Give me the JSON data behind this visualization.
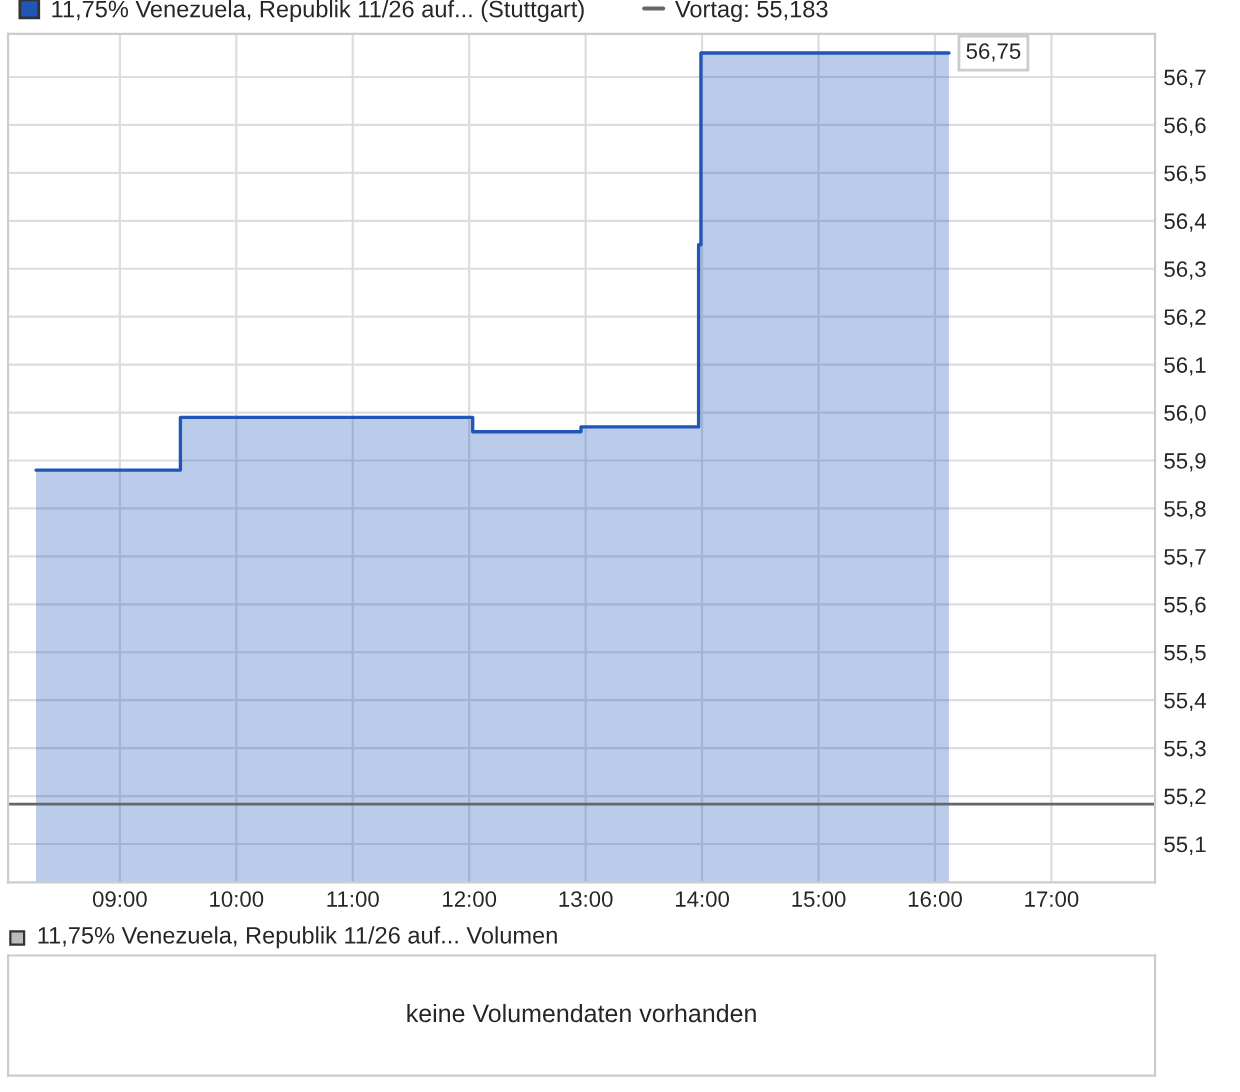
{
  "chart_data": [
    {
      "type": "area",
      "series": [
        {
          "name": "11,75% Venezuela, Republik 11/26 auf... (Stuttgart)",
          "color": "#1f56b8",
          "x": [
            8.28,
            9.52,
            9.52,
            12.03,
            12.03,
            12.96,
            12.96,
            13.97,
            13.97,
            13.99,
            13.99,
            16.12
          ],
          "values": [
            55.88,
            55.88,
            55.99,
            55.99,
            55.96,
            55.96,
            55.97,
            55.97,
            56.35,
            56.35,
            56.75,
            56.75
          ]
        }
      ],
      "xlim": [
        8.04,
        17.89
      ],
      "ylim": [
        55.02,
        56.79
      ],
      "xticks": [
        {
          "value": 9,
          "label": "09:00"
        },
        {
          "value": 10,
          "label": "10:00"
        },
        {
          "value": 11,
          "label": "11:00"
        },
        {
          "value": 12,
          "label": "12:00"
        },
        {
          "value": 13,
          "label": "13:00"
        },
        {
          "value": 14,
          "label": "14:00"
        },
        {
          "value": 15,
          "label": "15:00"
        },
        {
          "value": 16,
          "label": "16:00"
        },
        {
          "value": 17,
          "label": "17:00"
        }
      ],
      "yticks": [
        {
          "value": 55.1,
          "label": "55,1"
        },
        {
          "value": 55.2,
          "label": "55,2"
        },
        {
          "value": 55.3,
          "label": "55,3"
        },
        {
          "value": 55.4,
          "label": "55,4"
        },
        {
          "value": 55.5,
          "label": "55,5"
        },
        {
          "value": 55.6,
          "label": "55,6"
        },
        {
          "value": 55.7,
          "label": "55,7"
        },
        {
          "value": 55.8,
          "label": "55,8"
        },
        {
          "value": 55.9,
          "label": "55,9"
        },
        {
          "value": 56.0,
          "label": "56,0"
        },
        {
          "value": 56.1,
          "label": "56,1"
        },
        {
          "value": 56.2,
          "label": "56,2"
        },
        {
          "value": 56.3,
          "label": "56,3"
        },
        {
          "value": 56.4,
          "label": "56,4"
        },
        {
          "value": 56.5,
          "label": "56,5"
        },
        {
          "value": 56.6,
          "label": "56,6"
        },
        {
          "value": 56.7,
          "label": "56,7"
        }
      ],
      "ref_lines": [
        {
          "axis": "y",
          "value": 55.183,
          "label": "Vortag: 55,183",
          "color": "#666666"
        }
      ],
      "annotations": [
        {
          "text": "56,75",
          "x": 16.12,
          "y": 56.75
        }
      ],
      "grid": true,
      "legend": "top left"
    },
    {
      "type": "other",
      "title": "11,75% Venezuela, Republik 11/26 auf... Volumen",
      "annotations": [
        "keine Volumendaten vorhanden"
      ]
    }
  ]
}
